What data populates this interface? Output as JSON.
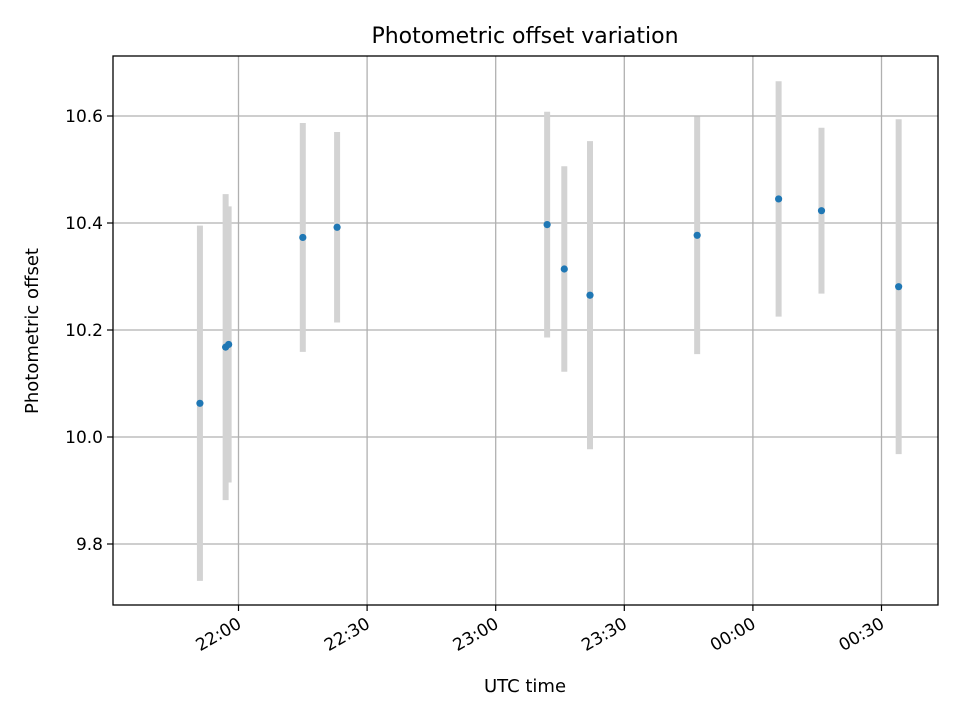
{
  "chart_data": {
    "type": "scatter",
    "title": "Photometric offset variation",
    "xlabel": "UTC time",
    "ylabel": "Photometric offset",
    "x_tick_labels": [
      "22:00",
      "22:30",
      "23:00",
      "23:30",
      "00:00",
      "00:30"
    ],
    "y_tick_labels": [
      "9.8",
      "10.0",
      "10.2",
      "10.4",
      "10.6"
    ],
    "ylim": [
      9.69,
      10.71
    ],
    "grid": true,
    "colors": {
      "points": "#1f77b4",
      "errorbars": "#d3d3d3",
      "grid": "#b0b0b0"
    },
    "series": [
      {
        "points": [
          {
            "x": "21:51",
            "y": 10.063,
            "yerr": 0.332
          },
          {
            "x": "21:57",
            "y": 10.168,
            "yerr": 0.286
          },
          {
            "x": "21:57",
            "y": 10.173,
            "yerr": 0.258
          },
          {
            "x": "22:15",
            "y": 10.373,
            "yerr": 0.214
          },
          {
            "x": "22:23",
            "y": 10.392,
            "yerr": 0.178
          },
          {
            "x": "23:12",
            "y": 10.397,
            "yerr": 0.211
          },
          {
            "x": "23:16",
            "y": 10.314,
            "yerr": 0.192
          },
          {
            "x": "23:22",
            "y": 10.265,
            "yerr": 0.288
          },
          {
            "x": "23:47",
            "y": 10.377,
            "yerr": 0.222
          },
          {
            "x": "00:06",
            "y": 10.445,
            "yerr": 0.22
          },
          {
            "x": "00:16",
            "y": 10.423,
            "yerr": 0.155
          },
          {
            "x": "00:34",
            "y": 10.281,
            "yerr": 0.313
          }
        ]
      }
    ]
  }
}
